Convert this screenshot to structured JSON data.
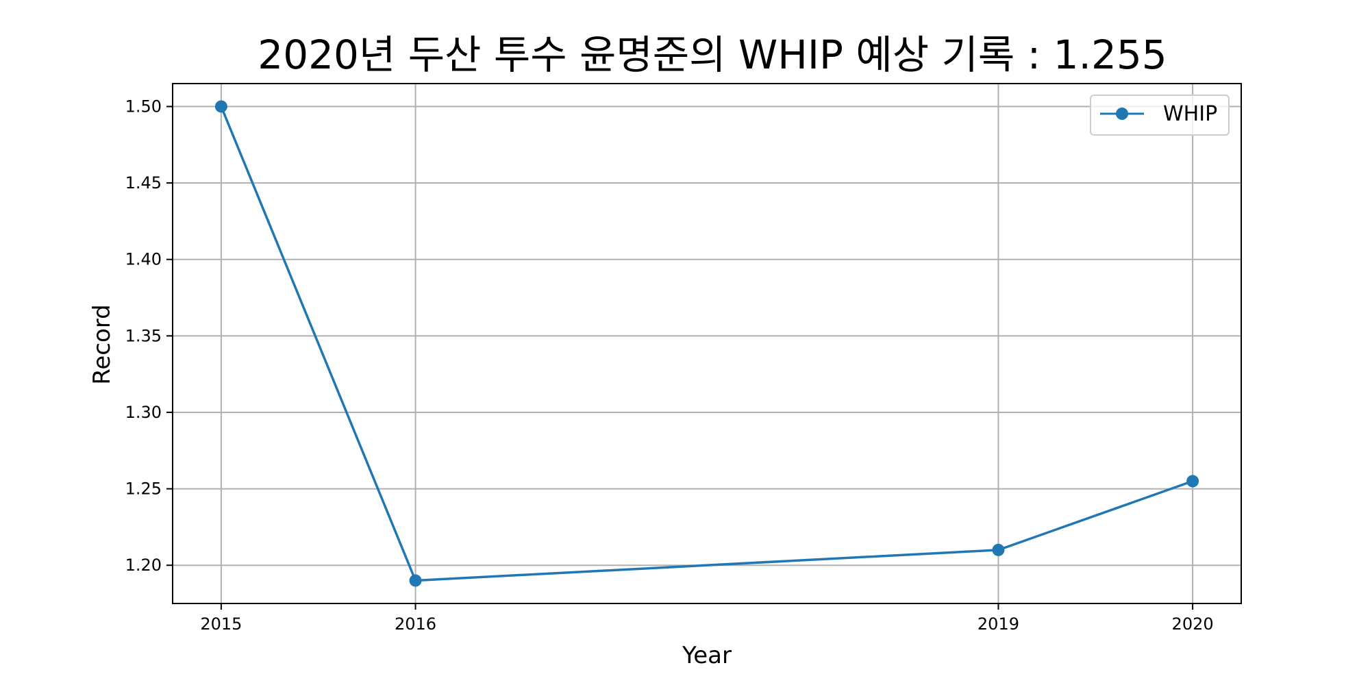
{
  "chart_data": {
    "type": "line",
    "title": "2020년 두산 투수 윤명준의 WHIP 예상 기록 : 1.255",
    "xlabel": "Year",
    "ylabel": "Record",
    "x": [
      2015,
      2016,
      2019,
      2020
    ],
    "x_tick_labels": [
      "2015",
      "2016",
      "2019",
      "2020"
    ],
    "xlim": [
      2014.75,
      2020.25
    ],
    "ylim": [
      1.175,
      1.515
    ],
    "y_ticks": [
      1.2,
      1.25,
      1.3,
      1.35,
      1.4,
      1.45,
      1.5
    ],
    "y_tick_labels": [
      "1.20",
      "1.25",
      "1.30",
      "1.35",
      "1.40",
      "1.45",
      "1.50"
    ],
    "series": [
      {
        "name": "WHIP",
        "values": [
          1.5,
          1.19,
          1.21,
          1.255
        ],
        "color": "#1f77b4",
        "marker": "circle"
      }
    ],
    "grid": true,
    "legend_position": "top-right"
  }
}
